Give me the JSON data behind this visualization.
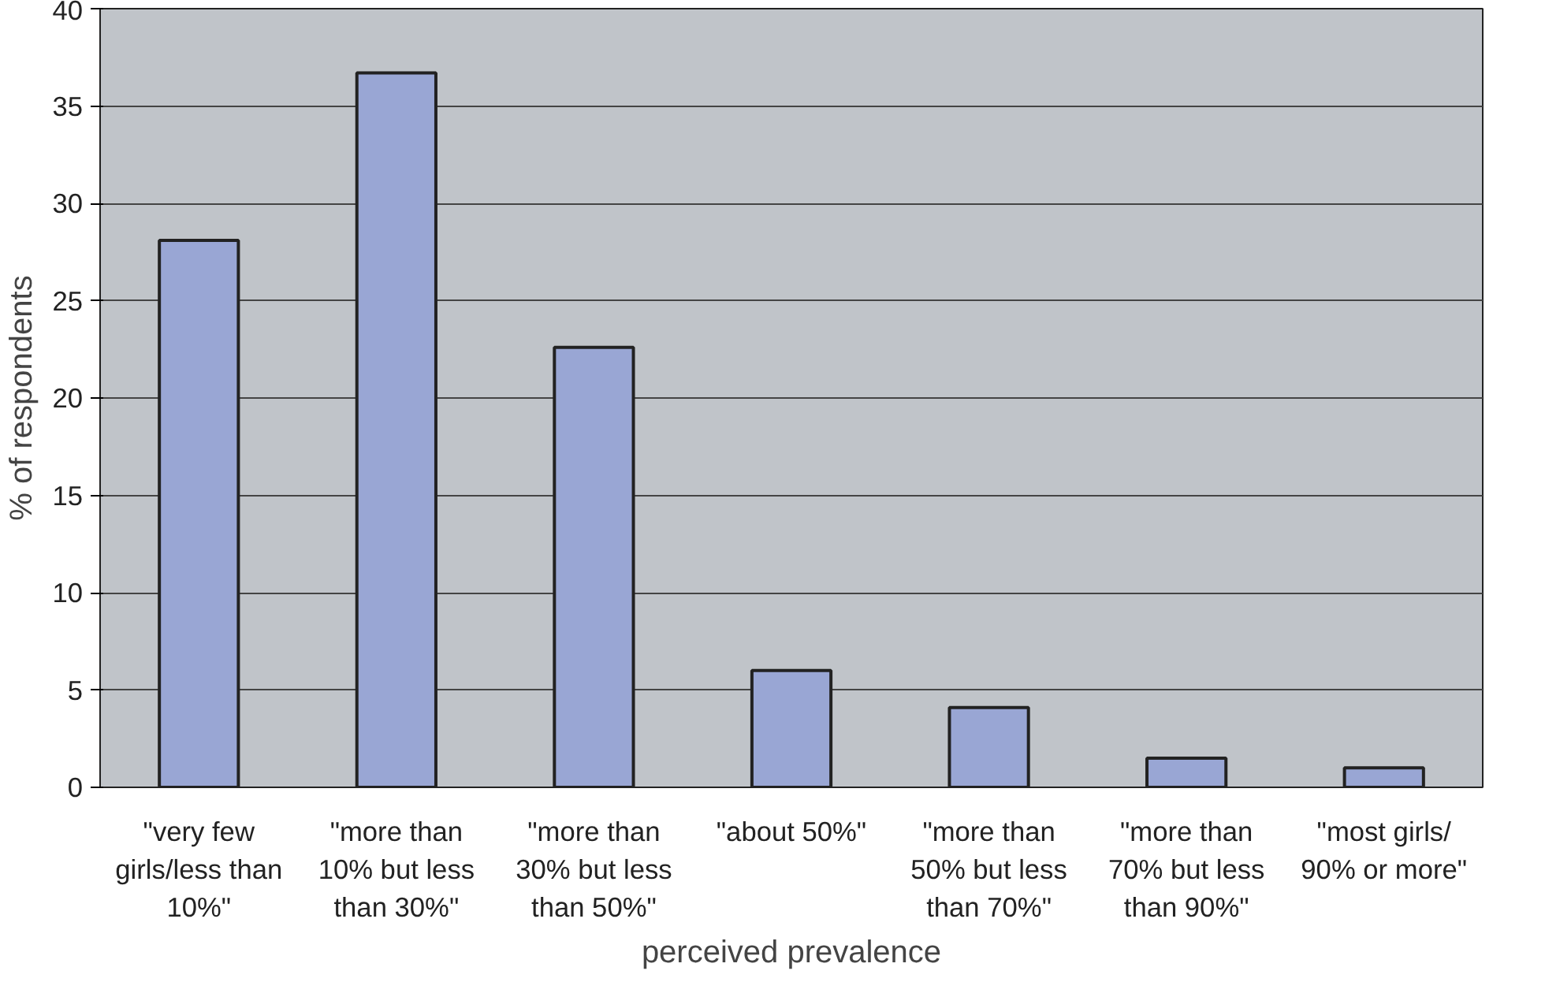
{
  "chart_data": {
    "type": "bar",
    "xlabel": "perceived prevalence",
    "ylabel": "% of respondents",
    "categories": [
      "\"very few\ngirls/less than\n10%\"",
      "\"more than\n10% but less\nthan 30%\"",
      "\"more than\n30% but less\nthan 50%\"",
      "\"about 50%\"",
      "\"more than\n50% but less\nthan 70%\"",
      "\"more than\n70% but less\nthan 90%\"",
      "\"most girls/\n90% or more\""
    ],
    "values": [
      28.1,
      36.7,
      22.6,
      6.0,
      4.1,
      1.5,
      1.0
    ],
    "color": "#99a6d4",
    "ylim": [
      0,
      40
    ],
    "yticks": [
      0,
      5,
      10,
      15,
      20,
      25,
      30,
      35,
      40
    ],
    "grid": "y"
  }
}
